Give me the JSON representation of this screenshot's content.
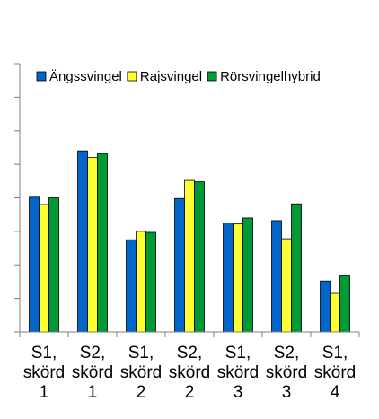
{
  "chart_data": {
    "type": "bar",
    "title": "",
    "xlabel": "",
    "ylabel": "",
    "ylim": [
      0,
      8
    ],
    "y_tick_count": 8,
    "y_tick_labels_shown": false,
    "grid": false,
    "legend_position": "top",
    "categories": [
      [
        "S1,",
        "skörd",
        "1"
      ],
      [
        "S2,",
        "skörd",
        "1"
      ],
      [
        "S1,",
        "skörd",
        "2"
      ],
      [
        "S2,",
        "skörd",
        "2"
      ],
      [
        "S1,",
        "skörd",
        "3"
      ],
      [
        "S2,",
        "skörd",
        "3"
      ],
      [
        "S1,",
        "skörd",
        "4"
      ]
    ],
    "series": [
      {
        "name": "Ängssvingel",
        "color": "#0066CC",
        "values": [
          4.02,
          5.4,
          2.75,
          3.98,
          3.25,
          3.32,
          1.52
        ]
      },
      {
        "name": "Rajsvingel",
        "color": "#FFFF33",
        "values": [
          3.8,
          5.2,
          3.0,
          4.52,
          3.22,
          2.78,
          1.15
        ]
      },
      {
        "name": "Rörsvingelhybrid",
        "color": "#009933",
        "values": [
          4.0,
          5.32,
          2.97,
          4.48,
          3.4,
          3.82,
          1.68
        ]
      }
    ]
  }
}
